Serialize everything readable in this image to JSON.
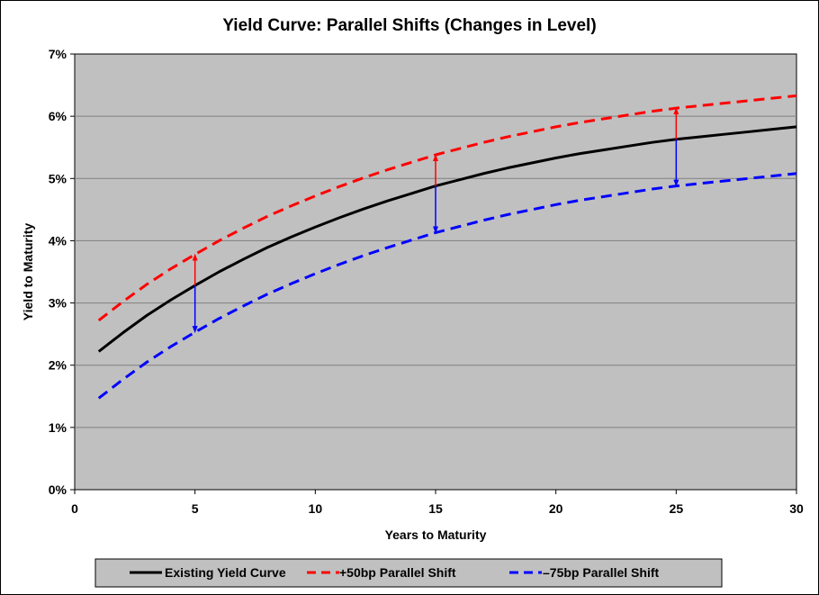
{
  "chart_data": {
    "type": "line",
    "title": "Yield Curve: Parallel Shifts (Changes in Level)",
    "xlabel": "Years to Maturity",
    "ylabel": "Yield to Maturity",
    "xlim": [
      0,
      30
    ],
    "ylim": [
      0,
      7
    ],
    "x_ticks": [
      0,
      5,
      10,
      15,
      20,
      25,
      30
    ],
    "x_tick_labels": [
      "0",
      "5",
      "10",
      "15",
      "20",
      "25",
      "30"
    ],
    "y_ticks": [
      0,
      1,
      2,
      3,
      4,
      5,
      6,
      7
    ],
    "y_tick_labels": [
      "0%",
      "1%",
      "2%",
      "3%",
      "4%",
      "5%",
      "6%",
      "7%"
    ],
    "grid": "horizontal",
    "plot_background": "#c0c0c0",
    "legend_position": "bottom",
    "x": [
      1,
      2,
      3,
      4,
      5,
      6,
      7,
      8,
      9,
      10,
      11,
      12,
      13,
      14,
      15,
      16,
      17,
      18,
      19,
      20,
      21,
      22,
      23,
      24,
      25,
      26,
      27,
      28,
      29,
      30
    ],
    "series": [
      {
        "name": "Existing Yield Curve",
        "color": "#000000",
        "dash": "solid",
        "values": [
          2.22,
          2.52,
          2.8,
          3.05,
          3.28,
          3.5,
          3.7,
          3.89,
          4.06,
          4.22,
          4.37,
          4.51,
          4.64,
          4.76,
          4.88,
          4.98,
          5.08,
          5.17,
          5.25,
          5.33,
          5.4,
          5.46,
          5.52,
          5.58,
          5.63,
          5.67,
          5.71,
          5.75,
          5.79,
          5.83
        ]
      },
      {
        "name": "+50bp Parallel Shift",
        "color": "#ff0000",
        "dash": "dashed",
        "values": [
          2.72,
          3.02,
          3.3,
          3.55,
          3.78,
          4.0,
          4.2,
          4.39,
          4.56,
          4.72,
          4.87,
          5.01,
          5.14,
          5.26,
          5.38,
          5.48,
          5.58,
          5.67,
          5.75,
          5.83,
          5.9,
          5.96,
          6.02,
          6.08,
          6.13,
          6.17,
          6.21,
          6.25,
          6.29,
          6.33
        ]
      },
      {
        "name": "–75bp Parallel Shift",
        "color": "#0000ff",
        "dash": "dashed",
        "values": [
          1.47,
          1.77,
          2.05,
          2.3,
          2.53,
          2.75,
          2.95,
          3.14,
          3.31,
          3.47,
          3.62,
          3.76,
          3.89,
          4.01,
          4.13,
          4.23,
          4.33,
          4.42,
          4.5,
          4.58,
          4.65,
          4.71,
          4.77,
          4.83,
          4.88,
          4.92,
          4.96,
          5.0,
          5.04,
          5.08
        ]
      }
    ],
    "annotations": [
      {
        "type": "arrow",
        "x": 5,
        "from": 3.28,
        "to": 3.78,
        "color": "#ff0000"
      },
      {
        "type": "arrow",
        "x": 5,
        "from": 3.28,
        "to": 2.53,
        "color": "#0000ff"
      },
      {
        "type": "arrow",
        "x": 15,
        "from": 4.88,
        "to": 5.38,
        "color": "#ff0000"
      },
      {
        "type": "arrow",
        "x": 15,
        "from": 4.88,
        "to": 4.13,
        "color": "#0000ff"
      },
      {
        "type": "arrow",
        "x": 25,
        "from": 5.63,
        "to": 6.13,
        "color": "#ff0000"
      },
      {
        "type": "arrow",
        "x": 25,
        "from": 5.63,
        "to": 4.88,
        "color": "#0000ff"
      }
    ]
  }
}
